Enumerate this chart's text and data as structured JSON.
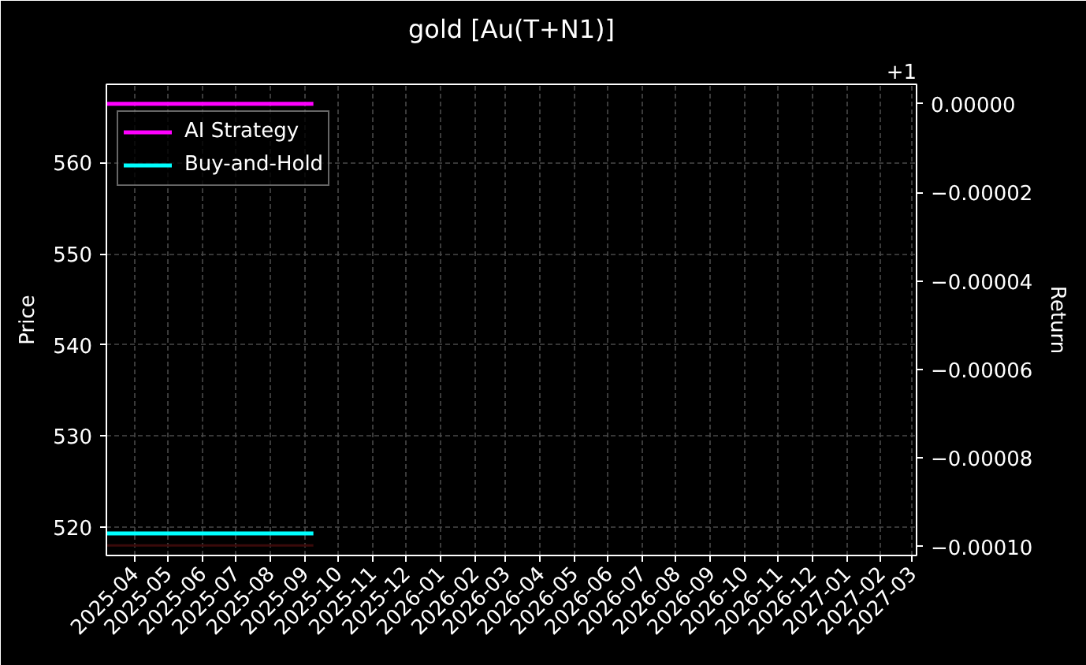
{
  "chart_data": {
    "type": "line",
    "title": "gold [Au(T+N1)]",
    "ylabel": "Price",
    "y2label": "Return",
    "annotations": [
      "+1"
    ],
    "x": [
      "2025-03-07",
      "2025-09-09"
    ],
    "series": [
      {
        "name": "AI Strategy",
        "color": "#ff00ff",
        "values": [
          0.0,
          0.0
        ],
        "axis": "y2"
      },
      {
        "name": "Buy-and-Hold",
        "color": "#00ffff",
        "values": [
          -9.7e-05,
          -9.7e-05
        ],
        "axis": "y2"
      },
      {
        "color": "#3a0a0a",
        "values": [
          518.0,
          518.0
        ]
      }
    ],
    "xlim": [
      "2025-03-07",
      "2027-03-05"
    ],
    "xticks": [
      "2025-04",
      "2025-05",
      "2025-06",
      "2025-07",
      "2025-08",
      "2025-09",
      "2025-10",
      "2025-11",
      "2025-12",
      "2026-01",
      "2026-02",
      "2026-03",
      "2026-04",
      "2026-05",
      "2026-06",
      "2026-07",
      "2026-08",
      "2026-09",
      "2026-10",
      "2026-11",
      "2026-12",
      "2027-01",
      "2027-02",
      "2027-03"
    ],
    "ylim": [
      516.9,
      568.6
    ],
    "yticks": [
      520,
      530,
      540,
      550,
      560
    ],
    "y2lim": [
      -0.000102,
      4.4e-06
    ],
    "y2ticks": [
      {
        "value": 0.0,
        "label": "0.00000"
      },
      {
        "value": -2e-05,
        "label": "−0.00002"
      },
      {
        "value": -4e-05,
        "label": "−0.00004"
      },
      {
        "value": -6e-05,
        "label": "−0.00006"
      },
      {
        "value": -8e-05,
        "label": "−0.00008"
      },
      {
        "value": -0.0001,
        "label": "−0.00010"
      }
    ],
    "grid": true,
    "legend": "top left",
    "line_style": "solid",
    "marker": "none"
  }
}
